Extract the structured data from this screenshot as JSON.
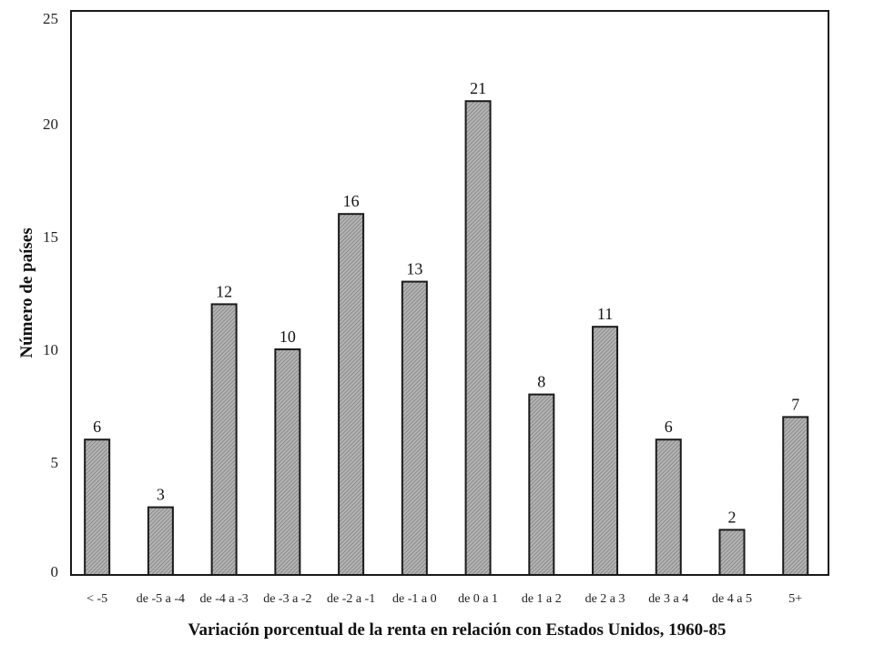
{
  "chart_data": {
    "type": "bar",
    "xlabel": "Variación porcentual de la renta en relación con Estados Unidos, 1960-85",
    "ylabel": "Número de países",
    "ylim": [
      0,
      25
    ],
    "yticks": [
      "0",
      "5",
      "10",
      "15",
      "20",
      "25"
    ],
    "categories": [
      "< -5",
      "de -5 a -4",
      "de -4 a -3",
      "de -3 a -2",
      "de -2 a -1",
      "de -1 a 0",
      "de 0 a 1",
      "de 1 a 2",
      "de 2 a 3",
      "de 3 a 4",
      "de 4 a 5",
      "5+"
    ],
    "values": [
      6,
      3,
      12,
      10,
      16,
      13,
      21,
      8,
      11,
      6,
      2,
      7
    ],
    "value_labels": [
      "6",
      "3",
      "12",
      "10",
      "16",
      "13",
      "21",
      "8",
      "11",
      "6",
      "2",
      "7"
    ],
    "grid": false,
    "colors": {
      "bar_fill": "#a9a9a9",
      "bar_stroke": "#1a1a1a",
      "axis": "#1a1a1a"
    }
  }
}
